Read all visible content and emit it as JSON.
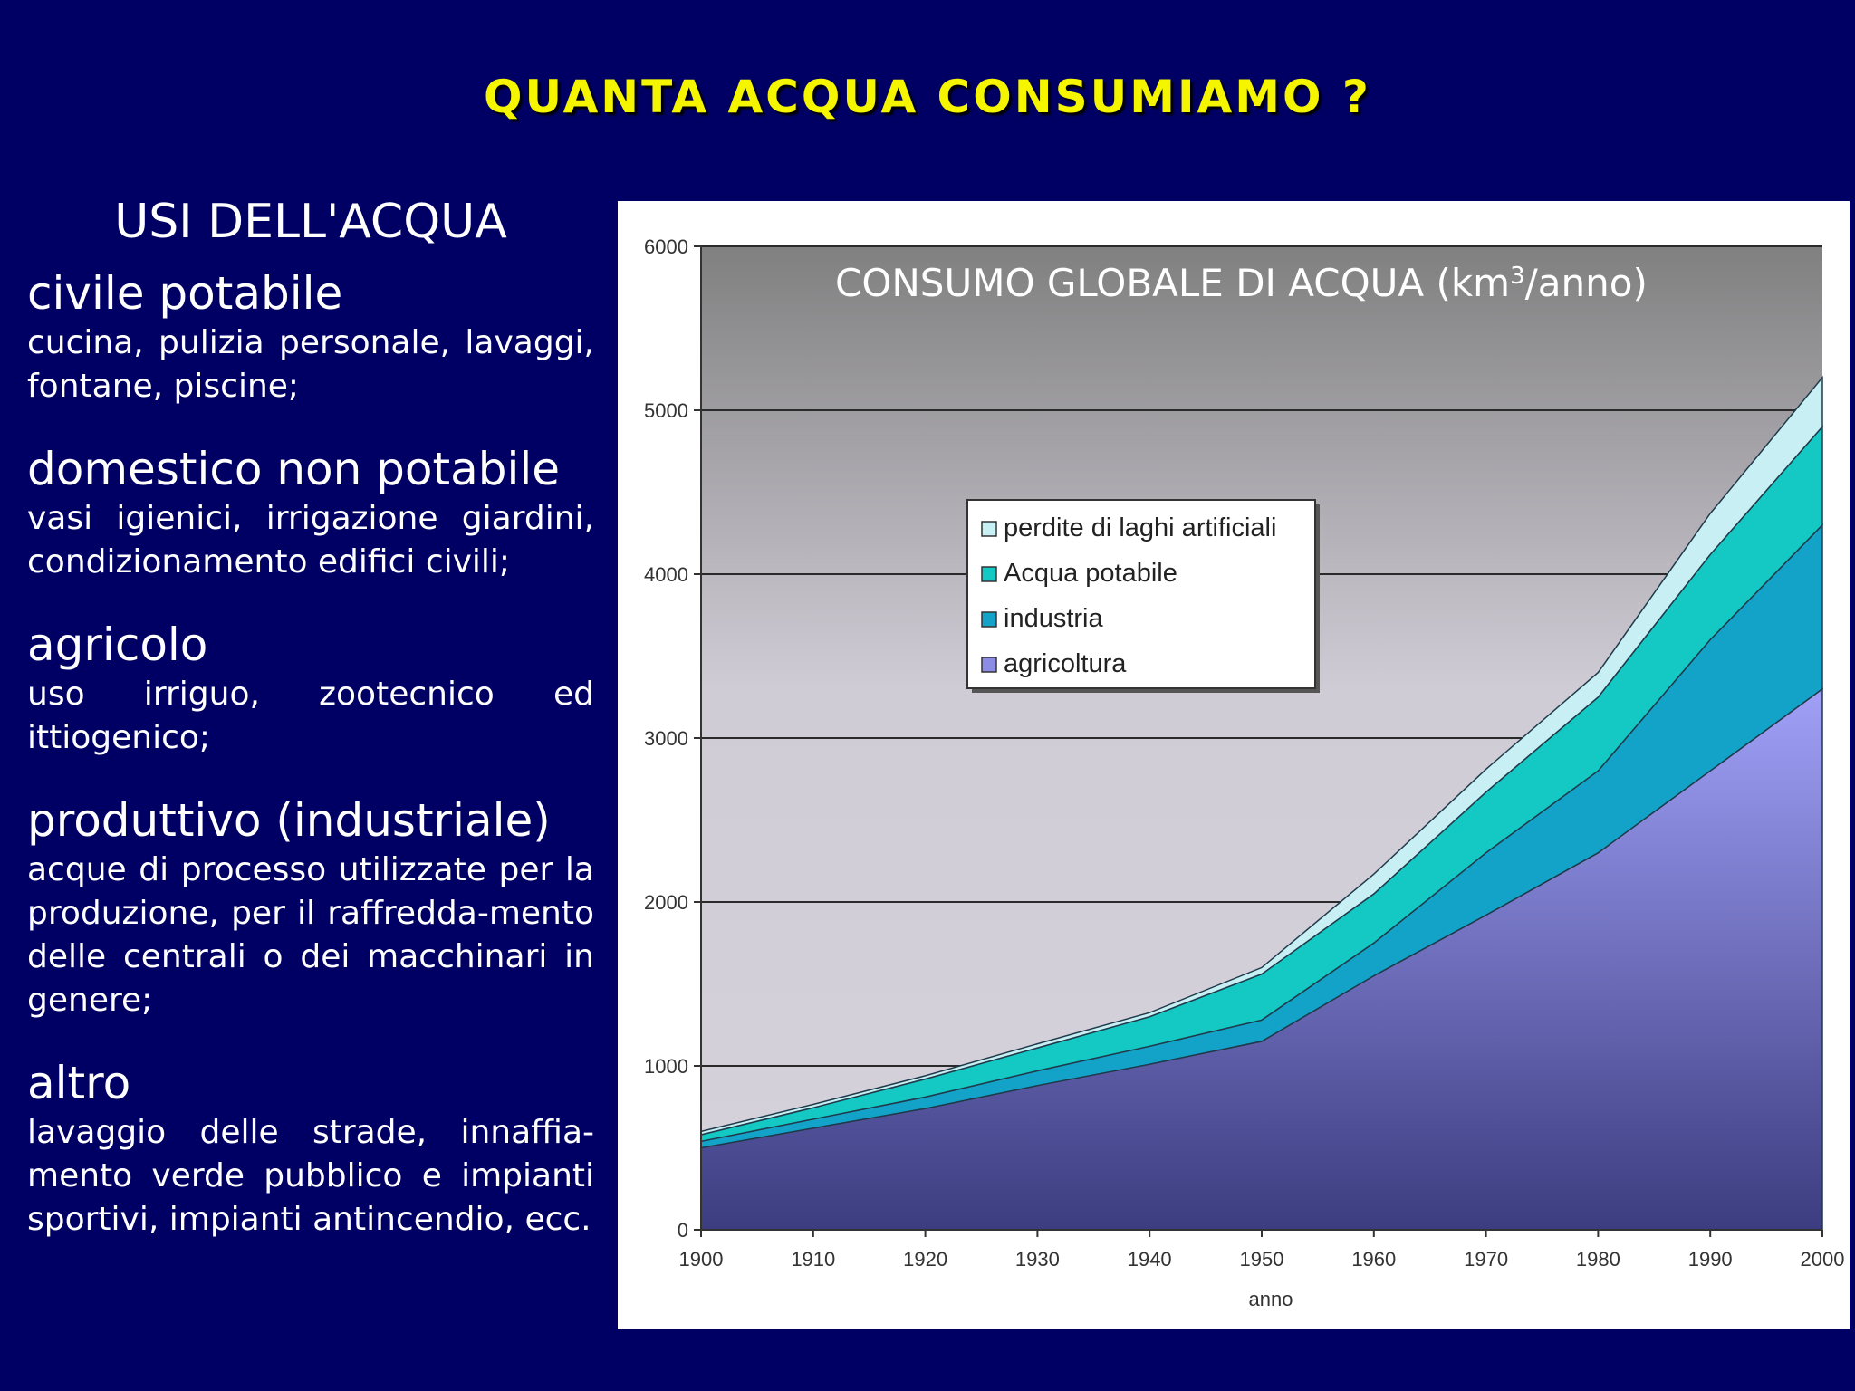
{
  "slide": {
    "title": "QUANTA ACQUA CONSUMIAMO ?"
  },
  "uses": {
    "heading": "USI DELL'ACQUA",
    "items": [
      {
        "title": "civile potabile",
        "description": "cucina, pulizia personale, lavaggi, fontane, piscine;"
      },
      {
        "title": "domestico non potabile",
        "description": "vasi igienici, irrigazione giardini, condizionamento edifici civili;"
      },
      {
        "title": "agricolo",
        "description": "uso irriguo, zootecnico ed ittiogenico;"
      },
      {
        "title": "produttivo (industriale)",
        "description": "acque di processo utilizzate per la produzione, per il raffredda-mento delle centrali o dei macchinari in genere;"
      },
      {
        "title": "altro",
        "description": "lavaggio delle strade, innaffia-mento verde pubblico e impianti sportivi, impianti antincendio, ecc."
      }
    ]
  },
  "chart_data": {
    "type": "area",
    "stacked": true,
    "title_main": "CONSUMO GLOBALE DI ACQUA (km",
    "title_sup": "3",
    "title_end": "/anno)",
    "xlabel": "anno",
    "ylabel": "",
    "x": [
      1900,
      1910,
      1920,
      1930,
      1940,
      1950,
      1960,
      1970,
      1980,
      1990,
      2000
    ],
    "xlim": [
      1900,
      2000
    ],
    "ylim": [
      0,
      6000
    ],
    "yticks": [
      0,
      1000,
      2000,
      3000,
      4000,
      5000,
      6000
    ],
    "grid": true,
    "legend_position": "upper-left-inside",
    "series": [
      {
        "name": "agricoltura",
        "color": "#8c8ce6",
        "values": [
          500,
          620,
          740,
          880,
          1010,
          1150,
          1550,
          1920,
          2300,
          2800,
          3300
        ]
      },
      {
        "name": "industria",
        "color": "#13a3c9",
        "values": [
          40,
          55,
          70,
          90,
          110,
          130,
          200,
          380,
          500,
          800,
          1000
        ]
      },
      {
        "name": "Acqua potabile",
        "color": "#14c8c4",
        "values": [
          40,
          70,
          110,
          140,
          180,
          280,
          300,
          370,
          450,
          520,
          600
        ]
      },
      {
        "name": "perdite di laghi artificiali",
        "color": "#c8f0f4",
        "values": [
          20,
          20,
          20,
          25,
          25,
          40,
          120,
          140,
          150,
          250,
          300
        ]
      }
    ]
  }
}
